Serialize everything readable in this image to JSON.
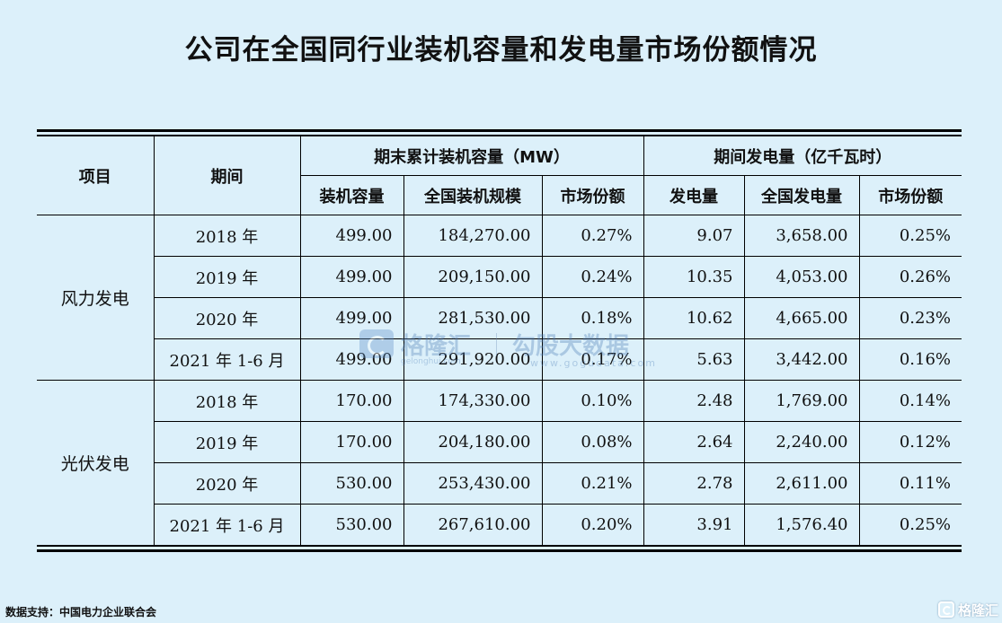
{
  "title": "公司在全国同行业装机容量和发电量市场份额情况",
  "table": {
    "headers": {
      "item": "项目",
      "period": "期间",
      "group_capacity": "期末累计装机容量（MW）",
      "group_generation": "期间发电量（亿千瓦时）",
      "sub": [
        "装机容量",
        "全国装机规模",
        "市场份额",
        "发电量",
        "全国发电量",
        "市场份额"
      ]
    },
    "groups": [
      {
        "category": "风力发电",
        "rows": [
          {
            "period": "2018 年",
            "values": [
              "499.00",
              "184,270.00",
              "0.27%",
              "9.07",
              "3,658.00",
              "0.25%"
            ]
          },
          {
            "period": "2019 年",
            "values": [
              "499.00",
              "209,150.00",
              "0.24%",
              "10.35",
              "4,053.00",
              "0.26%"
            ]
          },
          {
            "period": "2020 年",
            "values": [
              "499.00",
              "281,530.00",
              "0.18%",
              "10.62",
              "4,665.00",
              "0.23%"
            ]
          },
          {
            "period": "2021 年 1-6 月",
            "values": [
              "499.00",
              "291,920.00",
              "0.17%",
              "5.63",
              "3,442.00",
              "0.16%"
            ]
          }
        ]
      },
      {
        "category": "光伏发电",
        "rows": [
          {
            "period": "2018 年",
            "values": [
              "170.00",
              "174,330.00",
              "0.10%",
              "2.48",
              "1,769.00",
              "0.14%"
            ]
          },
          {
            "period": "2019 年",
            "values": [
              "170.00",
              "204,180.00",
              "0.08%",
              "2.64",
              "2,240.00",
              "0.12%"
            ]
          },
          {
            "period": "2020 年",
            "values": [
              "530.00",
              "253,430.00",
              "0.21%",
              "2.78",
              "2,611.00",
              "0.11%"
            ]
          },
          {
            "period": "2021 年 1-6 月",
            "values": [
              "530.00",
              "267,610.00",
              "0.20%",
              "3.91",
              "1,576.40",
              "0.25%"
            ]
          }
        ]
      }
    ]
  },
  "watermark": {
    "brand": "格隆汇",
    "tagline": "勾股大数据",
    "url_left": "gelonghui.com",
    "url_right": "www.gogudata.com",
    "logo_icon": "gelonghui-logo-icon"
  },
  "footer": {
    "source": "数据支持：中国电力企业联合会",
    "brand": "格隆汇"
  },
  "colors": {
    "background": "#dcf0fa",
    "text": "#111111",
    "watermark": "#4f7fb8"
  }
}
